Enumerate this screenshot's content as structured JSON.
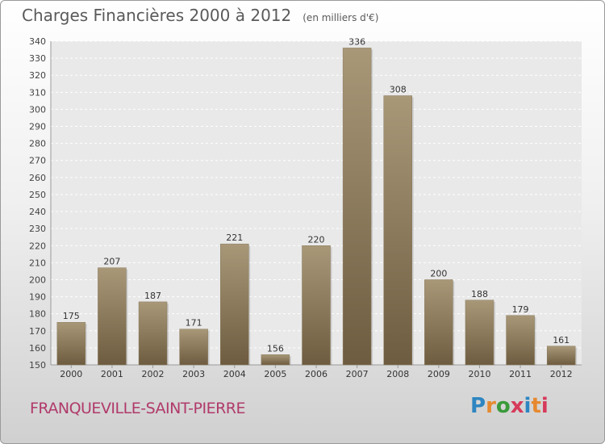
{
  "header": {
    "title": "Charges Financières 2000 à 2012",
    "subtitle": "(en milliers d'€)"
  },
  "footer": {
    "commune": "FRANQUEVILLE-SAINT-PIERRE",
    "logo": "Proxiti"
  },
  "colors": {
    "bar_light": "#a89878",
    "bar_dark": "#6e5c40",
    "logo_letters": [
      "#2e86c1",
      "#e6892f",
      "#3a9a3a",
      "#d63a5a",
      "#2e86c1",
      "#e6892f",
      "#d63a5a"
    ]
  },
  "chart_data": {
    "type": "bar",
    "title": "Charges Financières 2000 à 2012",
    "subtitle": "(en milliers d'€)",
    "categories": [
      "2000",
      "2001",
      "2002",
      "2003",
      "2004",
      "2005",
      "2006",
      "2007",
      "2008",
      "2009",
      "2010",
      "2011",
      "2012"
    ],
    "values": [
      175,
      207,
      187,
      171,
      221,
      156,
      220,
      336,
      308,
      200,
      188,
      179,
      161
    ],
    "ylim": [
      150,
      340
    ],
    "ytick_step": 10,
    "grid": true,
    "data_labels": true
  }
}
